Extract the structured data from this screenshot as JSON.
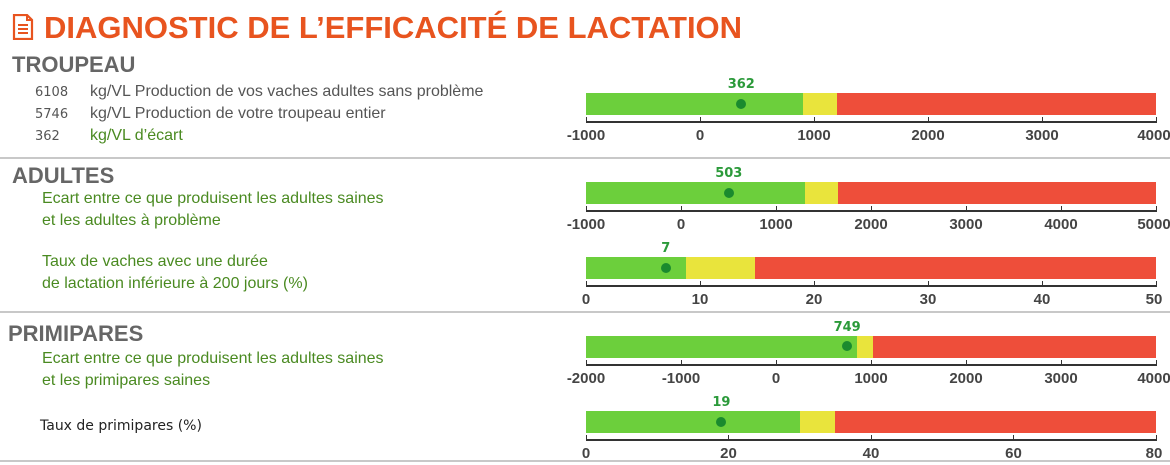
{
  "title": "DIAGNOSTIC DE L’EFFICACITÉ DE LACTATION",
  "colors": {
    "title": "#e8541f",
    "green": "#6ccf3c",
    "yellow": "#e9e43c",
    "red": "#ee4e3a",
    "value_label": "#2b9a3a"
  },
  "troupeau": {
    "heading": "TROUPEAU",
    "rows": [
      {
        "value": "6108",
        "text": "kg/VL Production de vos vaches adultes sans problème"
      },
      {
        "value": "5746",
        "text": "kg/VL Production de votre troupeau entier"
      },
      {
        "value": "362",
        "text": "kg/VL d’écart"
      }
    ]
  },
  "adultes": {
    "heading": "ADULTES",
    "line1a": "Ecart entre ce que produisent les adultes saines",
    "line1b": "et les adultes à problème",
    "line2a": "Taux de vaches avec une durée",
    "line2b": "de lactation inférieure à 200 jours (%)"
  },
  "primipares": {
    "heading": "PRIMIPARES",
    "line1a": "Ecart entre ce que produisent les adultes saines",
    "line1b": "et les primipares saines",
    "line2": "Taux de primipares (%)"
  },
  "scales": [
    {
      "value": 362,
      "value_label": "362",
      "min": -1000,
      "max": 4000,
      "green_end": 900,
      "yellow_end": 1200,
      "ticks": [
        "-1000",
        "0",
        "1000",
        "2000",
        "3000",
        "4000"
      ]
    },
    {
      "value": 503,
      "value_label": "503",
      "min": -1000,
      "max": 5000,
      "green_end": 1300,
      "yellow_end": 1650,
      "ticks": [
        "-1000",
        "0",
        "1000",
        "2000",
        "3000",
        "4000",
        "5000"
      ]
    },
    {
      "value": 7,
      "value_label": "7",
      "min": 0,
      "max": 50,
      "green_end": 8.8,
      "yellow_end": 14.8,
      "ticks": [
        "0",
        "10",
        "20",
        "30",
        "40",
        "50"
      ]
    },
    {
      "value": 749,
      "value_label": "749",
      "min": -2000,
      "max": 4000,
      "green_end": 850,
      "yellow_end": 1020,
      "ticks": [
        "-2000",
        "-1000",
        "0",
        "1000",
        "2000",
        "3000",
        "4000"
      ]
    },
    {
      "value": 19,
      "value_label": "19",
      "min": 0,
      "max": 80,
      "green_end": 30,
      "yellow_end": 35,
      "ticks": [
        "0",
        "20",
        "40",
        "60",
        "80"
      ]
    }
  ]
}
